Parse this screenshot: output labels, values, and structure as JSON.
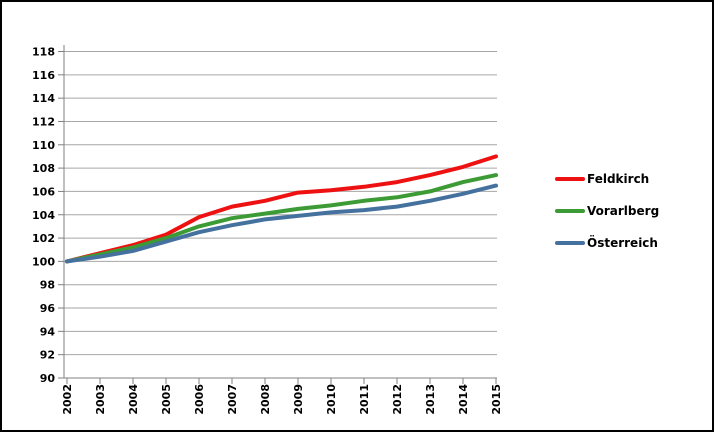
{
  "chart_data": {
    "type": "line",
    "title": "",
    "xlabel": "",
    "ylabel": "",
    "x": [
      "2002",
      "2003",
      "2004",
      "2005",
      "2006",
      "2007",
      "2008",
      "2009",
      "2010",
      "2011",
      "2012",
      "2013",
      "2014",
      "2015"
    ],
    "ylim": [
      90,
      118
    ],
    "ytick_step": 2,
    "grid": "horizontal",
    "legend_position": "right",
    "series": [
      {
        "name": "Feldkirch",
        "color": "#ee1111",
        "values": [
          100,
          100.7,
          101.4,
          102.3,
          103.8,
          104.7,
          105.2,
          105.9,
          106.1,
          106.4,
          106.8,
          107.4,
          108.1,
          109.0
        ]
      },
      {
        "name": "Vorarlberg",
        "color": "#3c9b35",
        "values": [
          100,
          100.6,
          101.2,
          102.0,
          103.0,
          103.7,
          104.1,
          104.5,
          104.8,
          105.2,
          105.5,
          106.0,
          106.8,
          107.4
        ]
      },
      {
        "name": "Österreich",
        "color": "#45719f",
        "values": [
          100,
          100.4,
          100.9,
          101.7,
          102.5,
          103.1,
          103.6,
          103.9,
          104.2,
          104.4,
          104.7,
          105.2,
          105.8,
          106.5
        ]
      }
    ]
  },
  "colors": {
    "grid": "#a6a6a6",
    "axis": "#808080",
    "tick_text": "#000000",
    "frame": "#000000",
    "background": "#ffffff"
  }
}
